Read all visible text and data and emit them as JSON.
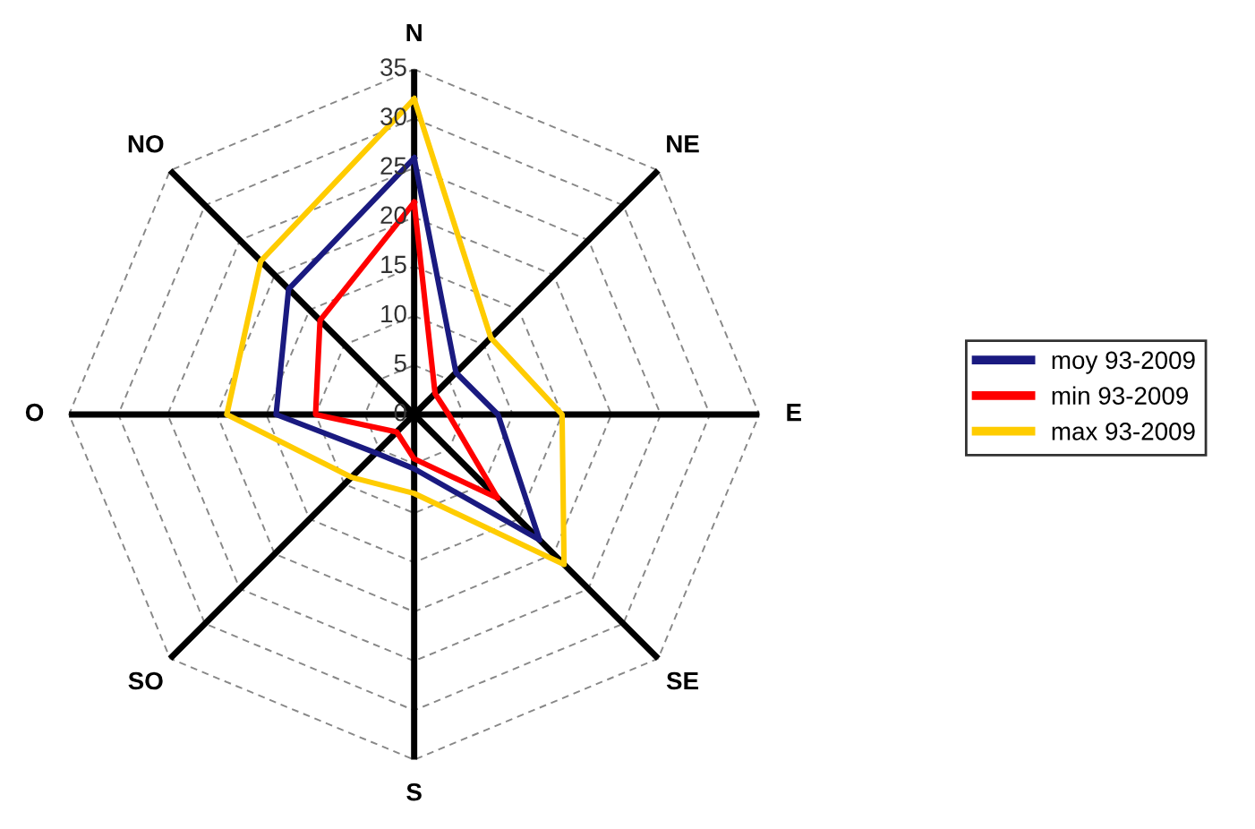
{
  "chart_data": {
    "type": "radar",
    "categories": [
      "N",
      "NE",
      "E",
      "SE",
      "S",
      "SO",
      "O",
      "NO"
    ],
    "series": [
      {
        "name": "moy 93-2009",
        "color": "#1a1a80",
        "values": [
          26,
          6,
          8.5,
          18,
          5.5,
          5.5,
          14,
          18
        ]
      },
      {
        "name": "min 93-2009",
        "color": "#ff0000",
        "values": [
          21.5,
          3,
          3.5,
          12,
          4.5,
          2.5,
          10,
          13.5
        ]
      },
      {
        "name": "max 93-2009",
        "color": "#ffcc00",
        "values": [
          32,
          11,
          15,
          21.5,
          8,
          9,
          19,
          22
        ]
      }
    ],
    "ylim": [
      0,
      35
    ],
    "yticks": [
      0,
      5,
      10,
      15,
      20,
      25,
      30,
      35
    ],
    "grid": true,
    "legend": "right",
    "line_style": "solid"
  }
}
